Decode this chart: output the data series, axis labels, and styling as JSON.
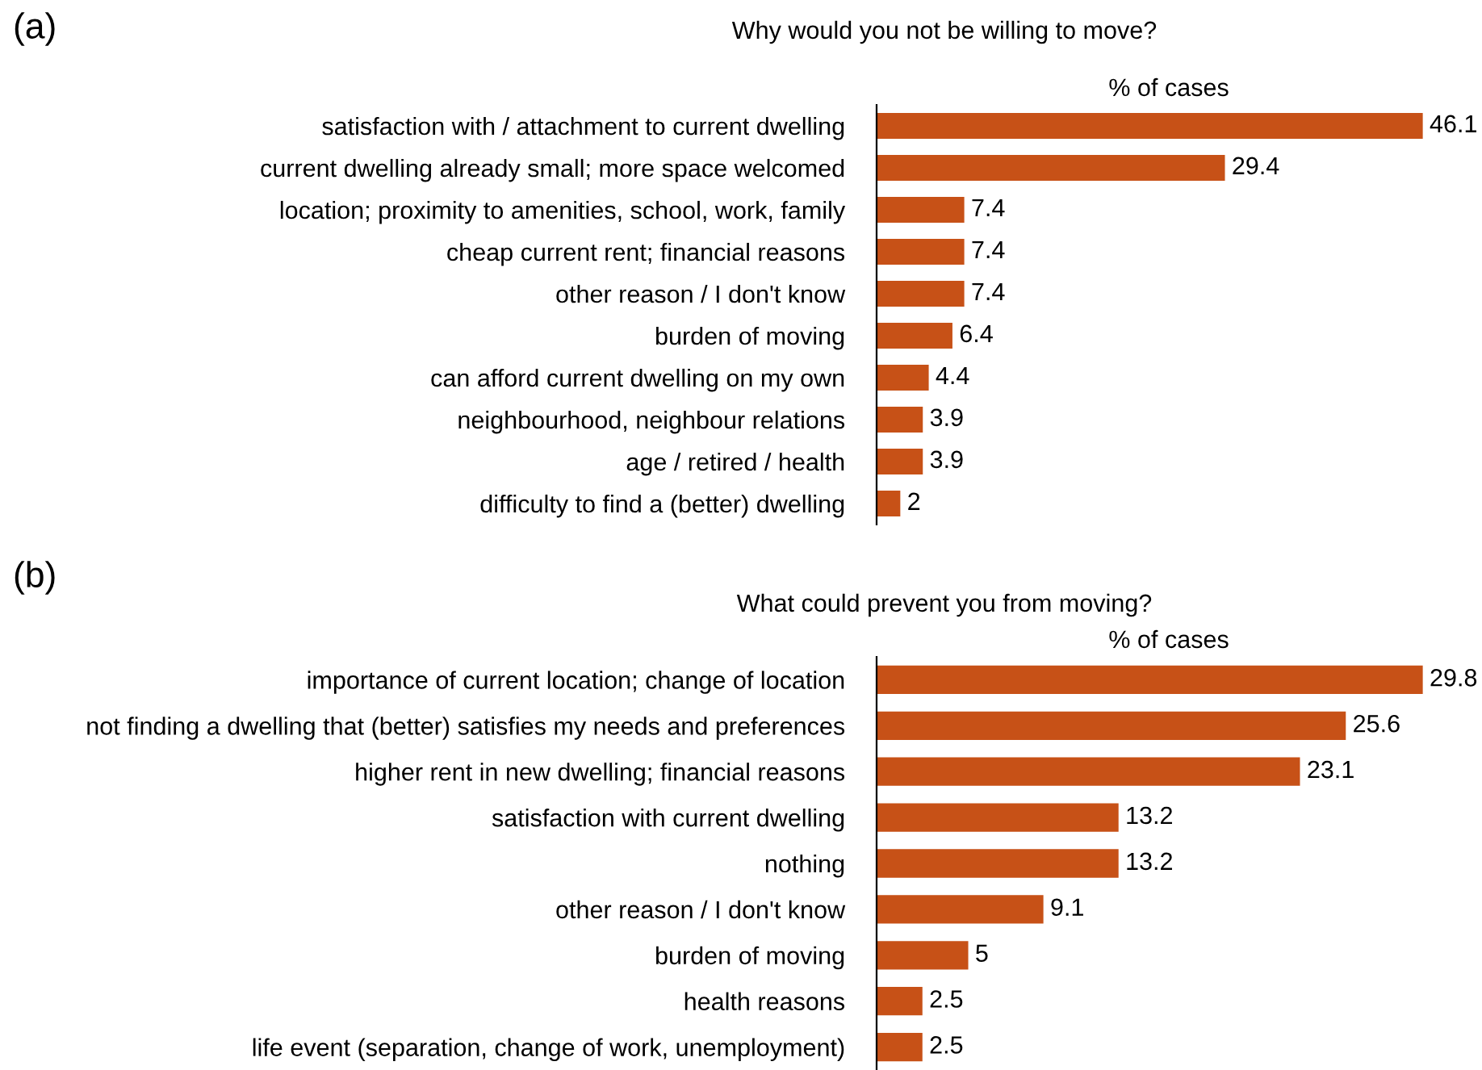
{
  "chart_data": [
    {
      "type": "bar",
      "orientation": "horizontal",
      "title": "Why would you not be willing to move?",
      "xlabel": "% of cases",
      "annotations": [
        "(a)"
      ],
      "data_labels": true,
      "color": "#c75117",
      "categories": [
        "satisfaction with / attachment to current dwelling",
        "current dwelling already small; more space welcomed",
        "location; proximity to amenities, school, work, family",
        "cheap current rent; financial reasons",
        "other reason / I don't know",
        "burden of moving",
        "can afford current dwelling on my own",
        "neighbourhood, neighbour relations",
        "age / retired / health",
        "difficulty to find a (better) dwelling"
      ],
      "values": [
        46.1,
        29.4,
        7.4,
        7.4,
        7.4,
        6.4,
        4.4,
        3.9,
        3.9,
        2
      ]
    },
    {
      "type": "bar",
      "orientation": "horizontal",
      "title": "What could prevent you from moving?",
      "xlabel": "% of cases",
      "annotations": [
        "(b)"
      ],
      "data_labels": true,
      "color": "#c75117",
      "categories": [
        "importance of current location; change of location",
        "not finding a dwelling that (better) satisfies my needs and preferences",
        "higher rent in new dwelling; financial reasons",
        "satisfaction with current dwelling",
        "nothing",
        "other reason / I don't know",
        "burden of moving",
        "health reasons",
        "life event (separation, change of work, unemployment)"
      ],
      "values": [
        29.8,
        25.6,
        23.1,
        13.2,
        13.2,
        9.1,
        5,
        2.5,
        2.5
      ]
    }
  ]
}
